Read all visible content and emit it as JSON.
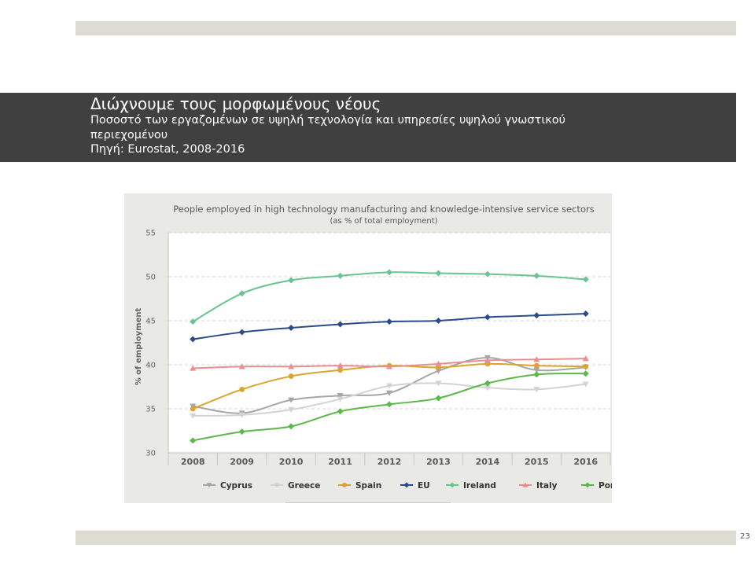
{
  "slide": {
    "headline": "Διώχνουμε τους μορφωμένους νέους",
    "subtitle": "Ποσοστό των εργαζομένων σε υψηλή τεχνολογία και υπηρεσίες υψηλού γνωστικού περιεχομένου",
    "source": "Πηγή: Eurostat, 2008-2016",
    "page_number": "23"
  },
  "colors": {
    "title_band": "#404040",
    "accent_bars": "#dcdcd2",
    "chart_background": "#e9eae6",
    "plot_background": "#ffffff"
  },
  "chart_data": {
    "type": "line",
    "title": "People employed in high technology manufacturing and knowledge-intensive service sectors",
    "subtitle": "(as % of total employment)",
    "xlabel": "",
    "ylabel": "% of employment",
    "ylim": [
      30,
      55
    ],
    "yticks": [
      "30",
      "35",
      "40",
      "45",
      "50",
      "55"
    ],
    "categories": [
      "2008",
      "2009",
      "2010",
      "2011",
      "2012",
      "2013",
      "2014",
      "2015",
      "2016"
    ],
    "grid": true,
    "legend_position": "bottom",
    "series": [
      {
        "name": "Cyprus",
        "color": "#a6a6a6",
        "marker": "triangle-down",
        "values": [
          35.3,
          34.5,
          36.0,
          36.5,
          36.8,
          39.3,
          40.8,
          39.4,
          39.7
        ]
      },
      {
        "name": "Greece",
        "color": "#d3d3d3",
        "marker": "triangle-down",
        "values": [
          34.2,
          34.3,
          34.9,
          36.1,
          37.6,
          37.9,
          37.4,
          37.2,
          37.8
        ]
      },
      {
        "name": "Spain",
        "color": "#d9a530",
        "marker": "circle",
        "values": [
          35.0,
          37.2,
          38.7,
          39.4,
          39.9,
          39.7,
          40.1,
          39.9,
          39.8
        ]
      },
      {
        "name": "EU",
        "color": "#2d4b8a",
        "marker": "diamond",
        "values": [
          42.9,
          43.7,
          44.2,
          44.6,
          44.9,
          45.0,
          45.4,
          45.6,
          45.8
        ]
      },
      {
        "name": "Ireland",
        "color": "#6ac48f",
        "marker": "diamond",
        "values": [
          44.9,
          48.1,
          49.6,
          50.1,
          50.5,
          50.4,
          50.3,
          50.1,
          49.7
        ]
      },
      {
        "name": "Italy",
        "color": "#e8908f",
        "marker": "triangle-up",
        "values": [
          39.6,
          39.8,
          39.8,
          39.9,
          39.8,
          40.1,
          40.5,
          40.6,
          40.7
        ]
      },
      {
        "name": "Portugal",
        "color": "#5db84a",
        "marker": "diamond",
        "values": [
          31.4,
          32.4,
          33.0,
          34.7,
          35.5,
          36.2,
          37.9,
          38.9,
          39.0
        ]
      }
    ]
  }
}
